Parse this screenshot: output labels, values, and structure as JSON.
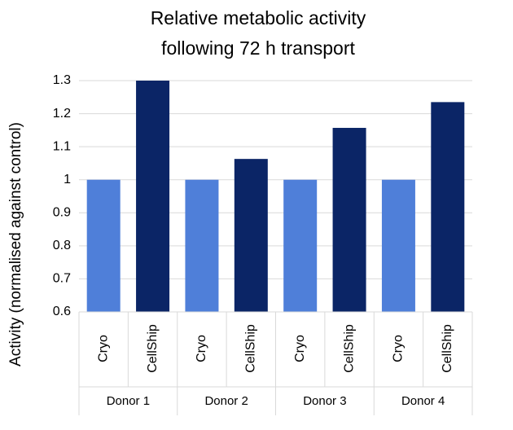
{
  "chart_data": {
    "type": "bar",
    "title": [
      "Relative metabolic activity",
      "following 72 h transport"
    ],
    "y_label": "Activity (normalised against control)",
    "categories": [
      "Donor 1",
      "Donor 2",
      "Donor 3",
      "Donor 4"
    ],
    "series": [
      {
        "name": "Cryo",
        "color": "#4f7fd9",
        "values": [
          1,
          1,
          1,
          1
        ]
      },
      {
        "name": "CellShip",
        "color": "#0b2566",
        "values": [
          1.3,
          1.063,
          1.157,
          1.235
        ]
      }
    ],
    "ylim": [
      0.6,
      1.3
    ],
    "yticks": [
      0.6,
      0.7,
      0.8,
      0.9,
      1,
      1.1,
      1.2,
      1.3
    ],
    "grid": true
  }
}
